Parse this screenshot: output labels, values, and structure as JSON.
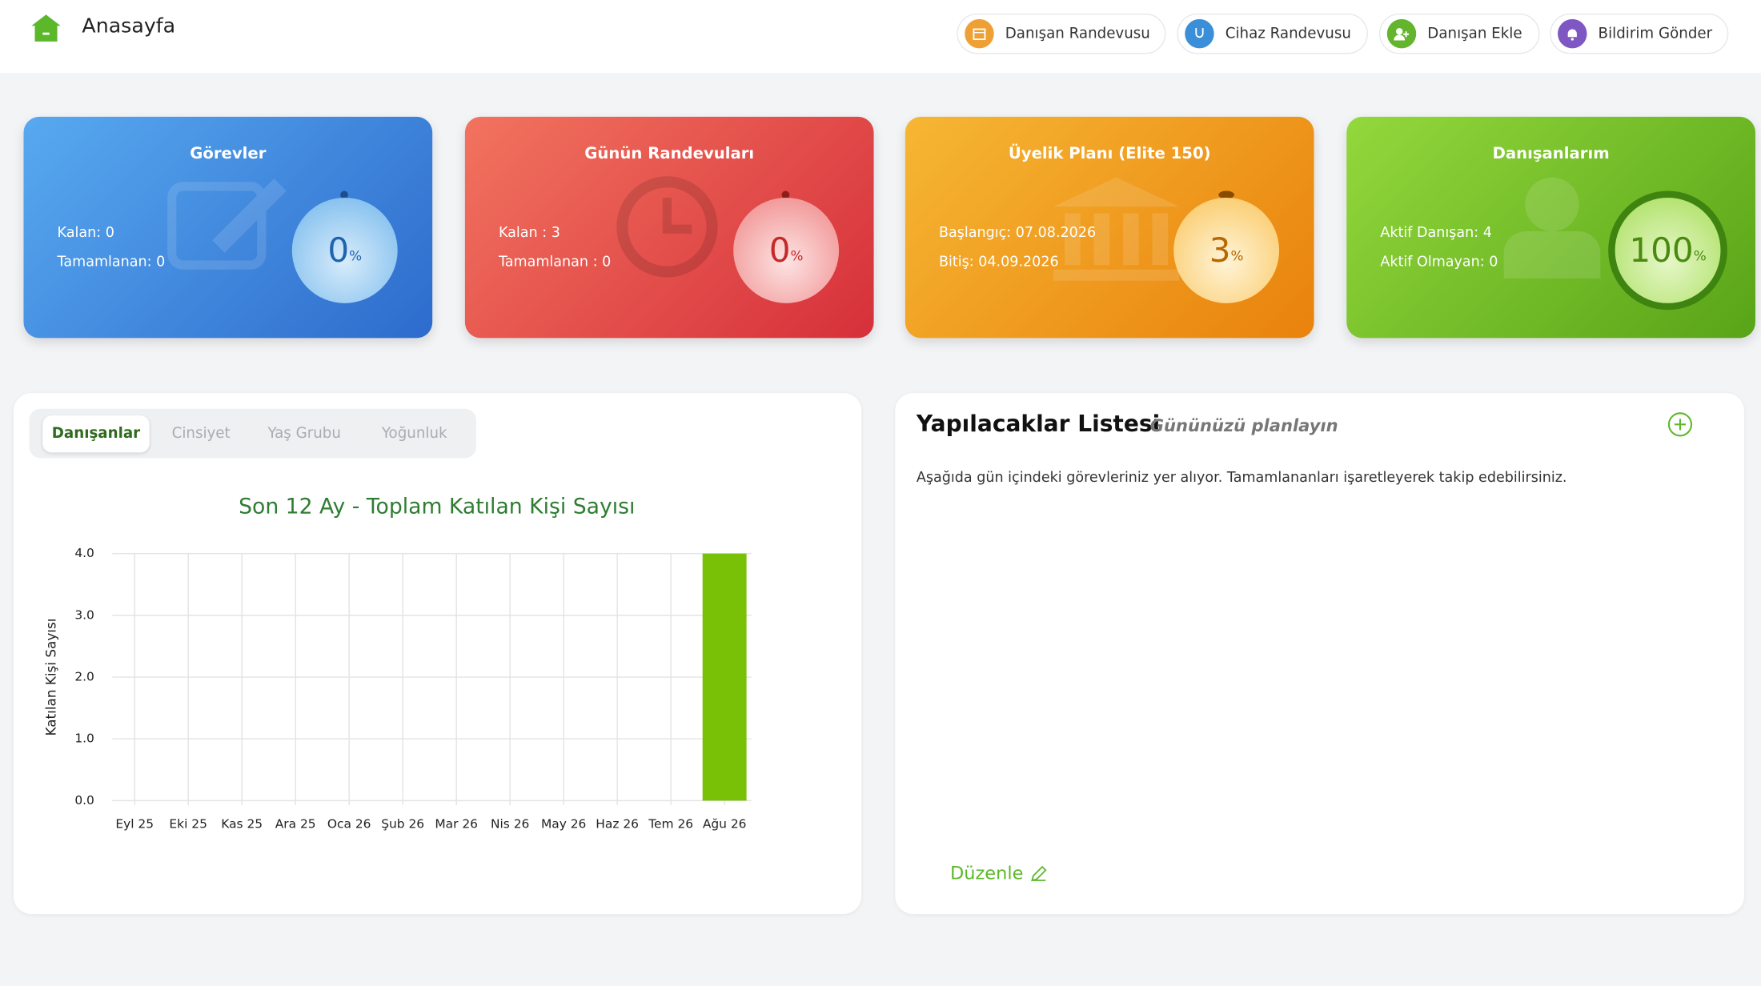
{
  "header": {
    "title": "Anasayfa",
    "buttons": [
      "Danışan Randevusu",
      "Cihaz Randevusu",
      "Danışan Ekle",
      "Bildirim Gönder"
    ]
  },
  "cards": [
    {
      "title": "Görevler",
      "lines": [
        "Kalan: 0",
        "Tamamlanan: 0"
      ],
      "percent": 0,
      "percent_unit": "%"
    },
    {
      "title": "Günün Randevuları",
      "lines": [
        "Kalan : 3",
        "Tamamlanan : 0"
      ],
      "percent": 0,
      "percent_unit": "%"
    },
    {
      "title": "Üyelik Planı (Elite 150)",
      "lines": [
        "Başlangıç: 07.08.2026",
        "Bitiş: 04.09.2026"
      ],
      "percent": 3,
      "percent_unit": "%"
    },
    {
      "title": "Danışanlarım",
      "lines": [
        "Aktif Danışan: 4",
        "Aktif Olmayan: 0"
      ],
      "percent": 100,
      "percent_unit": "%"
    }
  ],
  "tabs": [
    "Danışanlar",
    "Cinsiyet",
    "Yaş Grubu",
    "Yoğunluk"
  ],
  "chart_data": {
    "type": "bar",
    "title": "Son 12 Ay - Toplam Katılan Kişi Sayısı",
    "y_label": "Katılan Kişi Sayısı",
    "categories": [
      "Eyl 25",
      "Eki 25",
      "Kas 25",
      "Ara 25",
      "Oca 26",
      "Şub 26",
      "Mar 26",
      "Nis 26",
      "May 26",
      "Haz 26",
      "Tem 26",
      "Ağu 26"
    ],
    "values": [
      0,
      0,
      0,
      0,
      0,
      0,
      0,
      0,
      0,
      0,
      0,
      4
    ],
    "color": "#79c106",
    "ylim": [
      0,
      4
    ],
    "yticks": [
      {
        "value": 0,
        "label": "0.0"
      },
      {
        "value": 1,
        "label": "1.0"
      },
      {
        "value": 2,
        "label": "2.0"
      },
      {
        "value": 3,
        "label": "3.0"
      },
      {
        "value": 4,
        "label": "4.0"
      }
    ],
    "grid": true
  },
  "todo": {
    "title": "Yapılacaklar Listesi",
    "subtitle": "Gününüzü planlayın",
    "description": "Aşağıda gün içindeki görevleriniz yer alıyor. Tamamlananları işaretleyerek takip edebilirsiniz.",
    "edit": "Düzenle"
  }
}
